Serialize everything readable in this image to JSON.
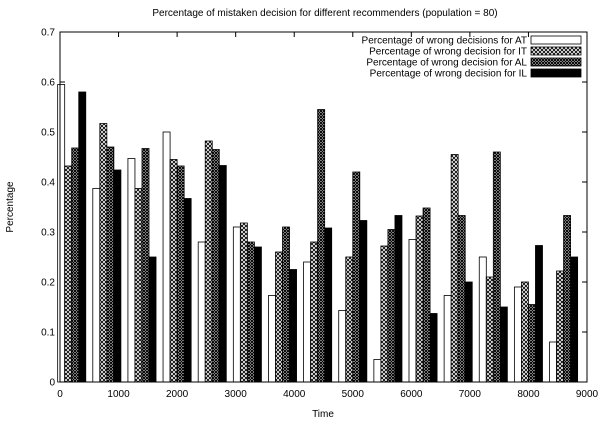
{
  "chart_data": {
    "type": "bar",
    "title": "Percentage of mistaken decision for different recommenders (population = 80)",
    "xlabel": "Time",
    "ylabel": "Percentage",
    "xlim": [
      0,
      9000
    ],
    "ylim": [
      0,
      0.7
    ],
    "xticks": [
      "0",
      "1000",
      "2000",
      "3000",
      "4000",
      "5000",
      "6000",
      "7000",
      "8000",
      "9000"
    ],
    "yticks": [
      "0",
      "0.1",
      "0.2",
      "0.3",
      "0.4",
      "0.5",
      "0.6",
      "0.7"
    ],
    "grid": false,
    "legend_position": "top-right",
    "x": [
      200,
      800,
      1400,
      2000,
      2600,
      3200,
      3800,
      4400,
      5000,
      5600,
      6200,
      6800,
      7400,
      8000,
      8600
    ],
    "series": [
      {
        "name": "Percentage of wrong decisions for AT",
        "pattern": "white",
        "values": [
          0.595,
          0.387,
          0.447,
          0.5,
          0.28,
          0.31,
          0.173,
          0.24,
          0.143,
          0.045,
          0.285,
          0.173,
          0.25,
          0.19,
          0.08
        ]
      },
      {
        "name": "Percentage of wrong decision for IT",
        "pattern": "cross",
        "values": [
          0.432,
          0.517,
          0.387,
          0.445,
          0.482,
          0.318,
          0.26,
          0.28,
          0.25,
          0.272,
          0.332,
          0.455,
          0.21,
          0.2,
          0.222
        ]
      },
      {
        "name": "Percentage of wrong decision for AL",
        "pattern": "dense",
        "values": [
          0.468,
          0.47,
          0.467,
          0.432,
          0.465,
          0.28,
          0.31,
          0.545,
          0.42,
          0.305,
          0.348,
          0.333,
          0.46,
          0.155,
          0.333
        ]
      },
      {
        "name": "Percentage of wrong decision for IL",
        "pattern": "black",
        "values": [
          0.58,
          0.424,
          0.25,
          0.367,
          0.433,
          0.27,
          0.225,
          0.308,
          0.323,
          0.333,
          0.137,
          0.2,
          0.15,
          0.273,
          0.25
        ]
      }
    ]
  }
}
